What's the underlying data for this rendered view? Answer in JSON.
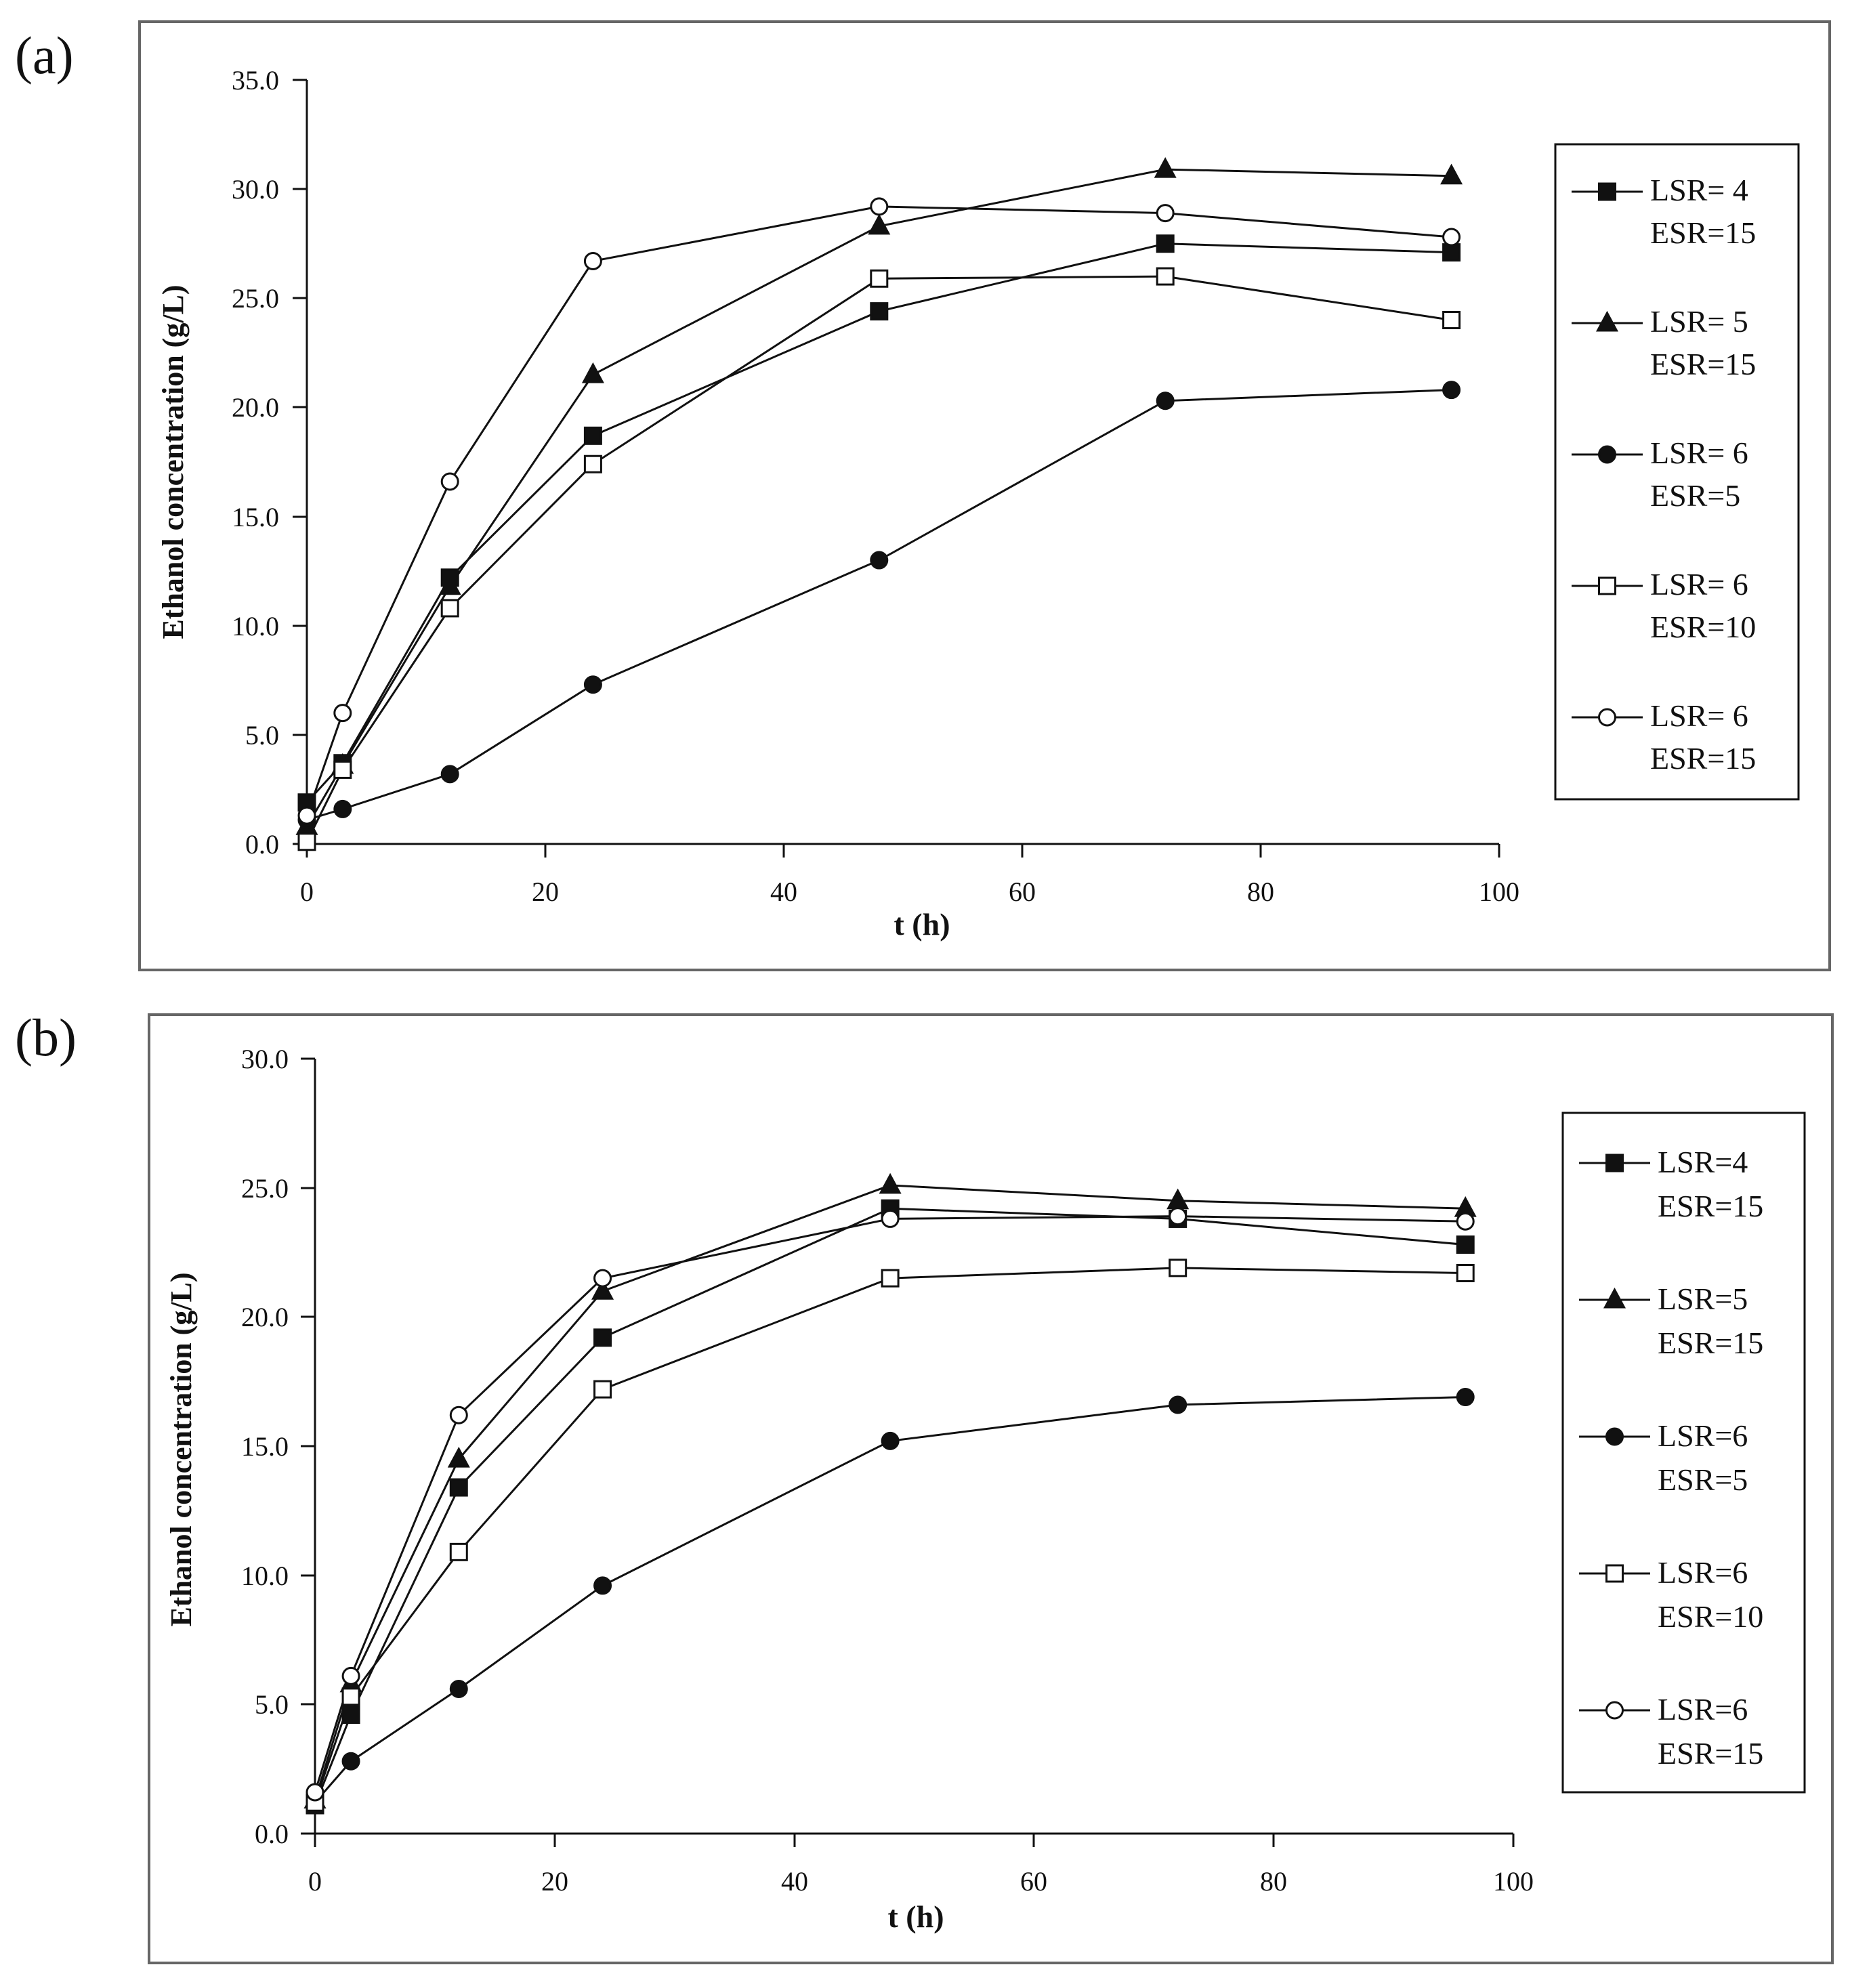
{
  "chart_data": [
    {
      "type": "line",
      "panel_label": "(a)",
      "xlabel": "t (h)",
      "ylabel": "Ethanol concentration (g/L)",
      "xlim": [
        0,
        100
      ],
      "ylim": [
        0,
        35
      ],
      "xticks": [
        "0",
        "20",
        "40",
        "60",
        "80",
        "100"
      ],
      "yticks": [
        "0.0",
        "5.0",
        "10.0",
        "15.0",
        "20.0",
        "25.0",
        "30.0",
        "35.0"
      ],
      "x": [
        0,
        3,
        12,
        24,
        48,
        72,
        96
      ],
      "legend_position": "right",
      "series": [
        {
          "line1": "LSR= 4",
          "line2": "ESR=15",
          "marker": "square-filled",
          "values": [
            1.9,
            3.7,
            12.2,
            18.7,
            24.4,
            27.5,
            27.1
          ]
        },
        {
          "line1": "LSR= 5",
          "line2": "ESR=15",
          "marker": "triangle-filled",
          "values": [
            0.8,
            3.6,
            11.8,
            21.5,
            28.3,
            30.9,
            30.6
          ]
        },
        {
          "line1": "LSR= 6",
          "line2": "ESR=5",
          "marker": "circle-filled",
          "values": [
            1.1,
            1.6,
            3.2,
            7.3,
            13.0,
            20.3,
            20.8
          ]
        },
        {
          "line1": "LSR= 6",
          "line2": "ESR=10",
          "marker": "square-open",
          "values": [
            0.1,
            3.4,
            10.8,
            17.4,
            25.9,
            26.0,
            24.0
          ]
        },
        {
          "line1": "LSR= 6",
          "line2": "ESR=15",
          "marker": "circle-open",
          "values": [
            1.3,
            6.0,
            16.6,
            26.7,
            29.2,
            28.9,
            27.8
          ]
        }
      ]
    },
    {
      "type": "line",
      "panel_label": "(b)",
      "xlabel": "t (h)",
      "ylabel": "Ethanol concentration (g/L)",
      "xlim": [
        0,
        100
      ],
      "ylim": [
        0,
        30
      ],
      "xticks": [
        "0",
        "20",
        "40",
        "60",
        "80",
        "100"
      ],
      "yticks": [
        "0.0",
        "5.0",
        "10.0",
        "15.0",
        "20.0",
        "25.0",
        "30.0"
      ],
      "x": [
        0,
        3,
        12,
        24,
        48,
        72,
        96
      ],
      "legend_position": "right",
      "series": [
        {
          "line1": "LSR=4",
          "line2": "ESR=15",
          "marker": "square-filled",
          "values": [
            1.1,
            4.6,
            13.4,
            19.2,
            24.2,
            23.8,
            22.8
          ]
        },
        {
          "line1": "LSR=5",
          "line2": "ESR=15",
          "marker": "triangle-filled",
          "values": [
            1.3,
            5.8,
            14.5,
            21.0,
            25.1,
            24.5,
            24.2
          ]
        },
        {
          "line1": "LSR=6",
          "line2": "ESR=5",
          "marker": "circle-filled",
          "values": [
            1.2,
            2.8,
            5.6,
            9.6,
            15.2,
            16.6,
            16.9
          ]
        },
        {
          "line1": "LSR=6",
          "line2": "ESR=10",
          "marker": "square-open",
          "values": [
            1.2,
            5.3,
            10.9,
            17.2,
            21.5,
            21.9,
            21.7
          ]
        },
        {
          "line1": "LSR=6",
          "line2": "ESR=15",
          "marker": "circle-open",
          "values": [
            1.6,
            6.1,
            16.2,
            21.5,
            23.8,
            23.9,
            23.7
          ]
        }
      ]
    }
  ]
}
